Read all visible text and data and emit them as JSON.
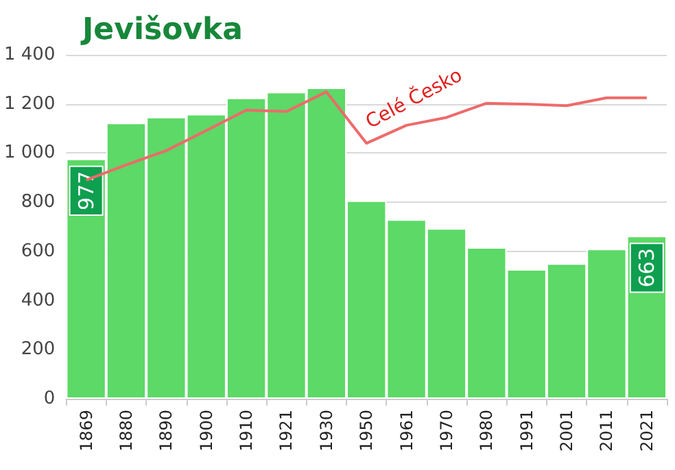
{
  "chart_data": {
    "type": "bar",
    "title": "Jevišovka",
    "categories": [
      "1869",
      "1880",
      "1890",
      "1900",
      "1910",
      "1921",
      "1930",
      "1950",
      "1961",
      "1970",
      "1980",
      "1991",
      "2001",
      "2011",
      "2021"
    ],
    "series": [
      {
        "color": "#5cd966",
        "values": [
          977,
          1123,
          1147,
          1159,
          1225,
          1249,
          1266,
          807,
          730,
          694,
          616,
          527,
          551,
          610,
          663
        ],
        "value_labels": [
          "977",
          null,
          null,
          null,
          null,
          null,
          null,
          null,
          null,
          null,
          null,
          null,
          null,
          null,
          "663"
        ]
      },
      {
        "type": "line",
        "name": "Celé Česko",
        "color": "#ee6a6a",
        "values": [
          890,
          952,
          1010,
          1092,
          1175,
          1169,
          1249,
          1040,
          1113,
          1145,
          1203,
          1199,
          1193,
          1225,
          1225
        ]
      }
    ],
    "ylim": [
      0,
      1400
    ],
    "yticks": [
      0,
      200,
      400,
      600,
      800,
      {
        "value": 1000,
        "label": "1 000"
      },
      {
        "value": 1200,
        "label": "1 200"
      },
      {
        "value": 1400,
        "label": "1 400"
      }
    ],
    "grid": "y",
    "legend": false,
    "marker": "none",
    "line_style": "solid"
  }
}
